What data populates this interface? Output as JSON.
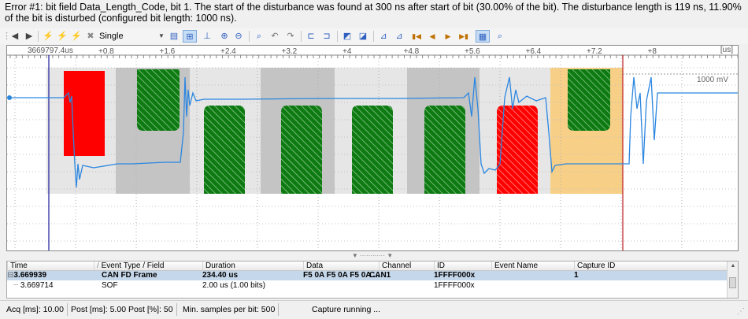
{
  "error_message": "Error #1: bit field Data_Length_Code, bit 1. The start of the disturbance was found at 300 ns after start of bit (30.00% of the bit). The disturbance length is 119 ns, 11.90% of the bit is disturbed (configured bit length: 1000 ns).",
  "toolbar": {
    "mode_label": "Single",
    "icons": [
      "back-icon",
      "forward-icon",
      "trigger-icon",
      "trigger-disabled-icon",
      "run-icon",
      "stop-icon",
      "mode-dropdown-icon",
      "save-icon",
      "measure-icon",
      "cursor-icon",
      "zoom-in-icon",
      "zoom-out-icon",
      "zoom-fit-icon",
      "undo-icon",
      "redo-icon",
      "marker-add-icon",
      "marker-remove-icon",
      "marker-left-icon",
      "marker-right-icon",
      "jump-first-icon",
      "jump-prev-icon",
      "jump-next-icon",
      "jump-last-icon",
      "grid-icon",
      "find-icon"
    ]
  },
  "scope": {
    "start_label": "3669797.4us",
    "tick_labels": [
      "+0.8",
      "+1.6",
      "+2.4",
      "+3.2",
      "+4",
      "+4.8",
      "+5.6",
      "+6.4",
      "+7.2",
      "+8"
    ],
    "unit": "[us]",
    "scale_label": "1000 mV",
    "colors": {
      "signal": "#2b86e0",
      "error": "#ff0000",
      "bit_ok": "#0e7a12",
      "warning": "#f8cf86",
      "dark_bit": "#c4c4c4",
      "light_bit": "#e6e6e6",
      "cursor_blue": "#1b1b9a",
      "cursor_red": "#c02020"
    }
  },
  "table": {
    "columns": [
      "Time",
      "Event Type / Field",
      "Duration",
      "Data",
      "Channel",
      "ID",
      "Event Name",
      "Capture ID"
    ],
    "rows": [
      {
        "time": "3.669939",
        "type": "CAN FD Frame",
        "duration": "234.40 us",
        "data": "F5 0A F5 0A F5 0A ...",
        "channel": "CAN1",
        "id": "1FFFF000x",
        "event_name": "",
        "capture_id": "1"
      },
      {
        "time": "3.669714",
        "type": "SOF",
        "duration": "2.00 us (1.00 bits)",
        "data": "",
        "channel": "",
        "id": "1FFFF000x",
        "event_name": "",
        "capture_id": ""
      }
    ]
  },
  "status": {
    "acq": "Acq [ms]: 10.00",
    "post": "Post [ms]: 5.00 Post [%]: 50",
    "samples": "Min. samples per bit: 500",
    "state": "Capture running ..."
  }
}
